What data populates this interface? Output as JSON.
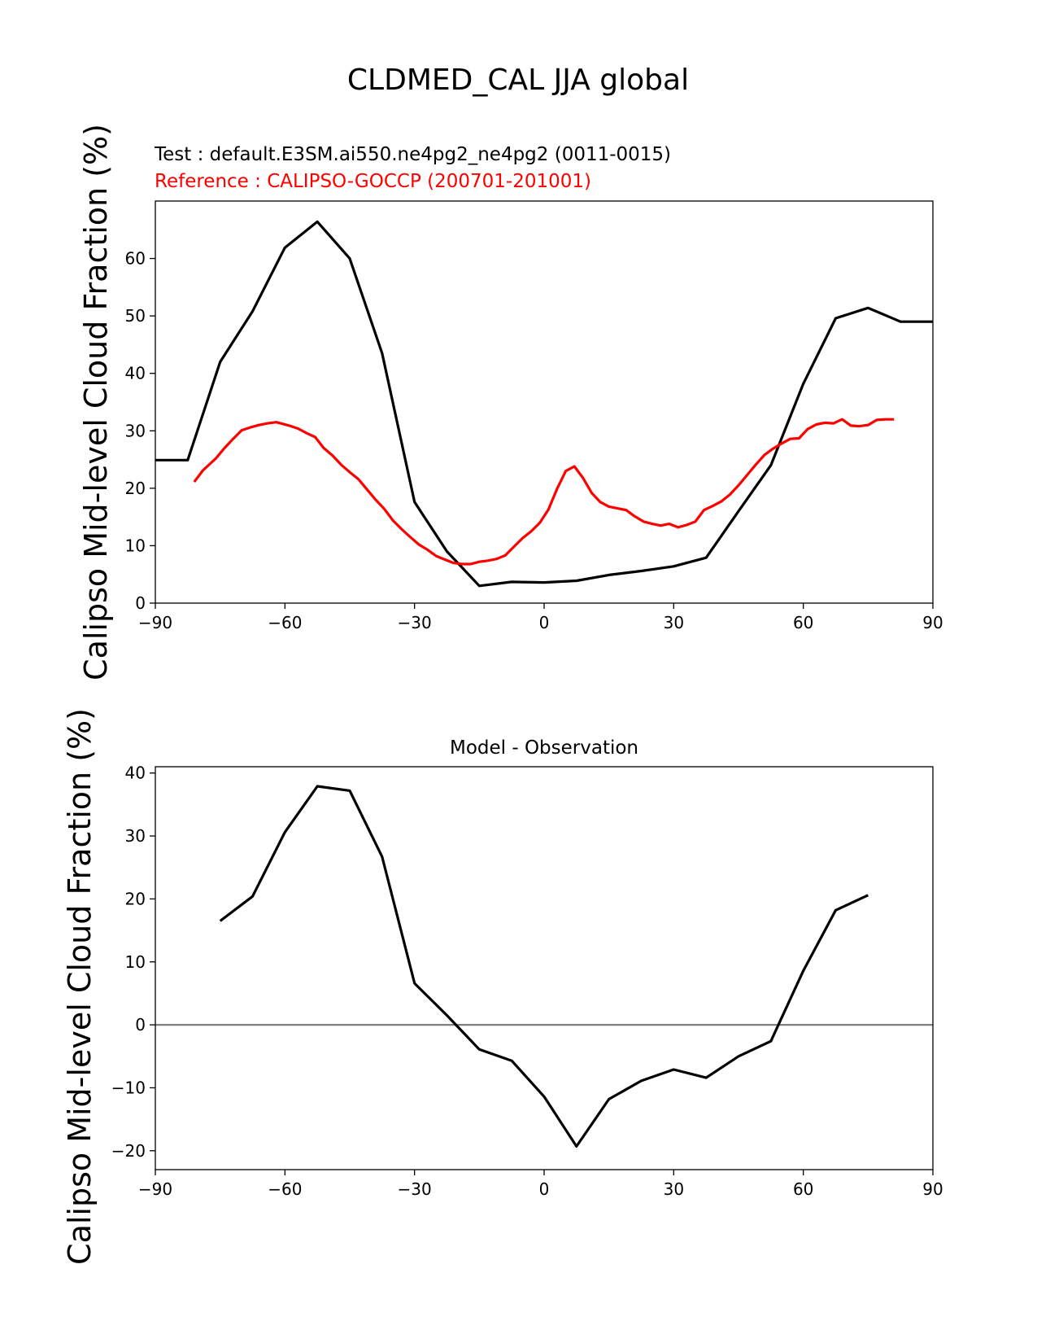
{
  "figure": {
    "title": "CLDMED_CAL JJA global"
  },
  "chart_data": [
    {
      "type": "line",
      "test_label": "Test : default.E3SM.ai550.ne4pg2_ne4pg2 (0011-0015)",
      "reference_label": "Reference : CALIPSO-GOCCP (200701-201001)",
      "ylabel": "Calipso Mid-level Cloud Fraction (%)",
      "xlim": [
        -90,
        90
      ],
      "ylim": [
        0,
        70
      ],
      "xticks": [
        -90,
        -60,
        -30,
        0,
        30,
        60,
        90
      ],
      "yticks": [
        0,
        10,
        20,
        30,
        40,
        50,
        60
      ],
      "grid": false,
      "series": [
        {
          "color": "#000000",
          "x": [
            -90,
            -82.5,
            -75,
            -67.5,
            -60,
            -52.5,
            -45,
            -37.5,
            -30,
            -22.5,
            -15,
            -7.5,
            0,
            7.5,
            15,
            22.5,
            30,
            37.5,
            45,
            52.5,
            60,
            67.5,
            75,
            82.5,
            90
          ],
          "y": [
            24.9,
            24.9,
            42,
            50.8,
            61.9,
            66.4,
            60,
            43.5,
            17.6,
            9,
            3,
            3.7,
            3.6,
            3.9,
            4.9,
            5.6,
            6.4,
            7.9,
            16,
            24,
            38.2,
            49.6,
            51.4,
            49,
            49
          ]
        },
        {
          "color": "#ff0000",
          "x": [
            -81,
            -79,
            -76,
            -74,
            -72,
            -70,
            -68,
            -66,
            -64,
            -62,
            -61,
            -59,
            -57,
            -55,
            -53,
            -51,
            -49,
            -47,
            -45,
            -43,
            -41,
            -39,
            -37,
            -35,
            -33,
            -31,
            -29,
            -27,
            -25,
            -23,
            -21,
            -19,
            -17,
            -15,
            -13,
            -11,
            -9,
            -7,
            -5,
            -3,
            -1,
            1,
            3,
            5,
            7,
            9,
            11,
            13,
            15,
            17,
            19,
            21,
            23,
            25,
            27,
            29,
            31,
            33,
            35,
            37,
            39,
            41,
            43,
            45,
            47,
            49,
            51,
            53,
            55,
            57,
            59,
            61,
            63,
            65,
            67,
            69,
            71,
            73,
            75,
            77,
            79,
            81
          ],
          "y": [
            21.1,
            23.1,
            25.2,
            27,
            28.6,
            30.1,
            30.6,
            31,
            31.3,
            31.5,
            31.3,
            30.9,
            30.4,
            29.6,
            28.9,
            27,
            25.7,
            24.1,
            22.8,
            21.6,
            19.8,
            18,
            16.4,
            14.4,
            12.9,
            11.5,
            10.2,
            9.3,
            8.2,
            7.6,
            7,
            6.8,
            6.8,
            7.2,
            7.4,
            7.7,
            8.3,
            9.8,
            11.3,
            12.5,
            14,
            16.3,
            19.9,
            23,
            23.8,
            21.8,
            19.2,
            17.6,
            16.8,
            16.5,
            16.2,
            15.1,
            14.2,
            13.8,
            13.5,
            13.8,
            13.2,
            13.6,
            14.2,
            16.2,
            16.9,
            17.7,
            18.9,
            20.5,
            22.3,
            24.1,
            25.8,
            26.9,
            27.8,
            28.6,
            28.7,
            30.3,
            31.1,
            31.4,
            31.3,
            32,
            30.9,
            30.8,
            31,
            31.9,
            32,
            32
          ]
        }
      ]
    },
    {
      "type": "line",
      "title": "Model - Observation",
      "ylabel": "Calipso Mid-level Cloud Fraction (%)",
      "xlim": [
        -90,
        90
      ],
      "ylim": [
        -23,
        41
      ],
      "xticks": [
        -90,
        -60,
        -30,
        0,
        30,
        60,
        90
      ],
      "yticks": [
        -20,
        -10,
        0,
        10,
        20,
        30,
        40
      ],
      "zero_line_color": "#808080",
      "grid": false,
      "series": [
        {
          "color": "#000000",
          "x": [
            -75,
            -67.5,
            -60,
            -52.5,
            -45,
            -37.5,
            -30,
            -22.5,
            -15,
            -7.5,
            0,
            7.5,
            15,
            22.5,
            30,
            37.5,
            45,
            52.5,
            60,
            67.5,
            75
          ],
          "y": [
            16.5,
            20.4,
            30.6,
            37.9,
            37.2,
            26.7,
            6.6,
            1.5,
            -3.9,
            -5.7,
            -11.4,
            -19.3,
            -11.8,
            -8.9,
            -7.1,
            -8.4,
            -5,
            -2.6,
            8.6,
            18.2,
            20.6
          ]
        }
      ]
    }
  ]
}
